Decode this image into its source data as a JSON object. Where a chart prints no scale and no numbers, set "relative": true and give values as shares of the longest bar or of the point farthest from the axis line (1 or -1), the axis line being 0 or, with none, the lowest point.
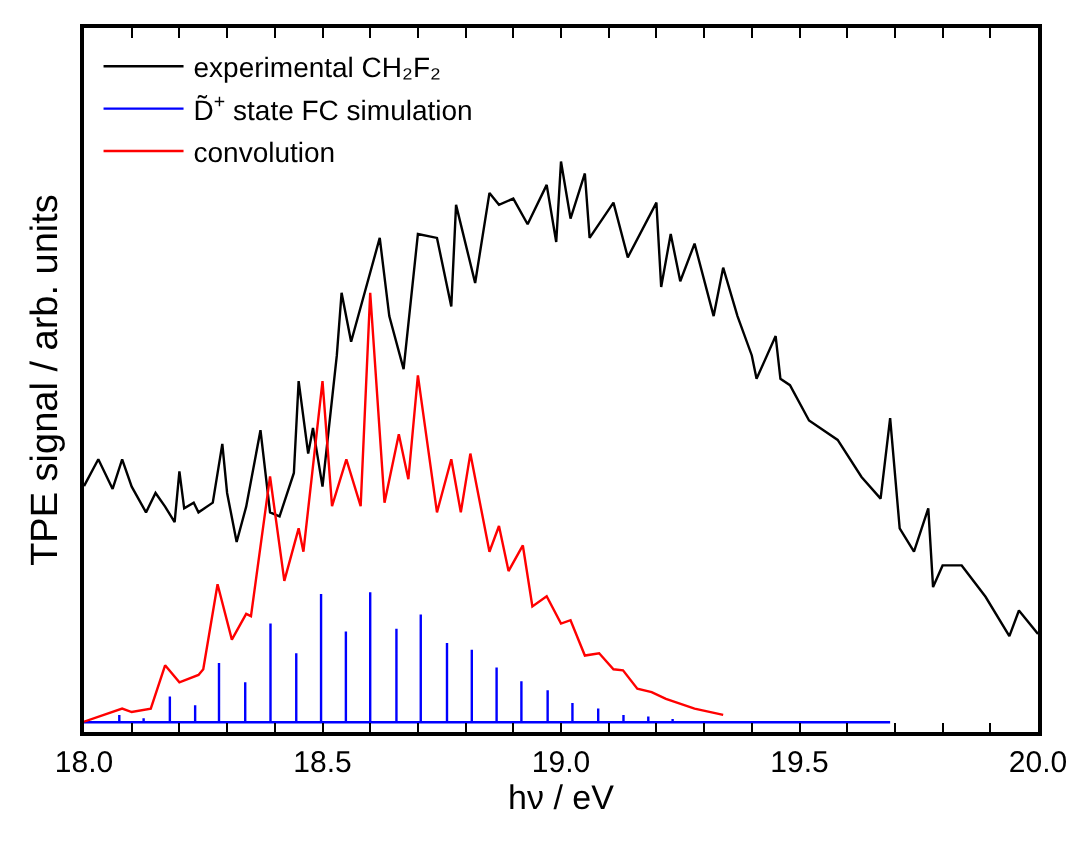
{
  "chart_data": {
    "type": "line",
    "relative": true,
    "xlabel": "hν / eV",
    "ylabel": "TPE signal / arb. units",
    "xlim": [
      18.0,
      20.0
    ],
    "xticks": [
      {
        "value": 18.0,
        "label": "18.0"
      },
      {
        "value": 18.1,
        "label": null
      },
      {
        "value": 18.2,
        "label": null
      },
      {
        "value": 18.3,
        "label": null
      },
      {
        "value": 18.4,
        "label": null
      },
      {
        "value": 18.5,
        "label": "18.5"
      },
      {
        "value": 18.6,
        "label": null
      },
      {
        "value": 18.7,
        "label": null
      },
      {
        "value": 18.8,
        "label": null
      },
      {
        "value": 18.9,
        "label": null
      },
      {
        "value": 19.0,
        "label": "19.0"
      },
      {
        "value": 19.1,
        "label": null
      },
      {
        "value": 19.2,
        "label": null
      },
      {
        "value": 19.3,
        "label": null
      },
      {
        "value": 19.4,
        "label": null
      },
      {
        "value": 19.5,
        "label": "19.5"
      },
      {
        "value": 19.6,
        "label": null
      },
      {
        "value": 19.7,
        "label": null
      },
      {
        "value": 19.8,
        "label": null
      },
      {
        "value": 19.9,
        "label": null
      },
      {
        "value": 20.0,
        "label": "20.0"
      }
    ],
    "tick_labels": "x",
    "legend": "top left",
    "marker": "none",
    "line_style": "solid",
    "series": [
      {
        "name": "experimental CH₂F₂",
        "color": "#000000",
        "x": [
          18.0,
          18.03,
          18.06,
          18.08,
          18.1,
          18.13,
          18.15,
          18.17,
          18.19,
          18.2,
          18.21,
          18.23,
          18.24,
          18.27,
          18.29,
          18.3,
          18.32,
          18.34,
          18.37,
          18.39,
          18.41,
          18.44,
          18.45,
          18.47,
          18.48,
          18.5,
          18.53,
          18.54,
          18.56,
          18.62,
          18.64,
          18.67,
          18.7,
          18.74,
          18.77,
          18.78,
          18.82,
          18.85,
          18.87,
          18.9,
          18.93,
          18.97,
          18.99,
          19.0,
          19.02,
          19.05,
          19.06,
          19.11,
          19.14,
          19.2,
          19.21,
          19.23,
          19.25,
          19.28,
          19.32,
          19.34,
          19.37,
          19.4,
          19.41,
          19.45,
          19.46,
          19.48,
          19.52,
          19.58,
          19.63,
          19.67,
          19.69,
          19.71,
          19.74,
          19.77,
          19.78,
          19.8,
          19.84,
          19.89,
          19.94,
          19.96,
          20.0
        ],
        "values": [
          0.431,
          0.478,
          0.426,
          0.478,
          0.43,
          0.385,
          0.419,
          0.395,
          0.368,
          0.457,
          0.392,
          0.402,
          0.385,
          0.402,
          0.505,
          0.419,
          0.333,
          0.395,
          0.529,
          0.385,
          0.378,
          0.454,
          0.615,
          0.488,
          0.533,
          0.43,
          0.66,
          0.77,
          0.684,
          0.866,
          0.729,
          0.636,
          0.873,
          0.866,
          0.746,
          0.924,
          0.787,
          0.945,
          0.924,
          0.935,
          0.89,
          0.959,
          0.859,
          1.0,
          0.9,
          0.979,
          0.866,
          0.928,
          0.832,
          0.928,
          0.78,
          0.873,
          0.79,
          0.856,
          0.729,
          0.814,
          0.729,
          0.66,
          0.619,
          0.694,
          0.619,
          0.608,
          0.546,
          0.512,
          0.447,
          0.409,
          0.55,
          0.357,
          0.316,
          0.392,
          0.254,
          0.292,
          0.292,
          0.237,
          0.168,
          0.213,
          0.172
        ]
      },
      {
        "name": "D̃$^{+}$ state FC simulation",
        "color": "#0000ff",
        "x": [
          18.0,
          18.074,
          18.074,
          18.074,
          18.125,
          18.125,
          18.125,
          18.18,
          18.18,
          18.18,
          18.233,
          18.233,
          18.233,
          18.283,
          18.283,
          18.283,
          18.338,
          18.338,
          18.338,
          18.391,
          18.391,
          18.391,
          18.445,
          18.445,
          18.445,
          18.497,
          18.497,
          18.497,
          18.549,
          18.549,
          18.549,
          18.6,
          18.6,
          18.6,
          18.655,
          18.655,
          18.655,
          18.706,
          18.706,
          18.706,
          18.761,
          18.761,
          18.761,
          18.813,
          18.813,
          18.813,
          18.865,
          18.865,
          18.865,
          18.917,
          18.917,
          18.917,
          18.972,
          18.972,
          18.972,
          19.024,
          19.024,
          19.024,
          19.078,
          19.078,
          19.078,
          19.131,
          19.131,
          19.131,
          19.183,
          19.183,
          19.183,
          19.234,
          19.234,
          19.234,
          19.69
        ],
        "values": [
          0.017,
          0.017,
          0.03,
          0.017,
          0.017,
          0.024,
          0.017,
          0.017,
          0.062,
          0.017,
          0.017,
          0.047,
          0.017,
          0.017,
          0.121,
          0.017,
          0.017,
          0.087,
          0.017,
          0.017,
          0.19,
          0.017,
          0.017,
          0.138,
          0.017,
          0.017,
          0.242,
          0.017,
          0.017,
          0.176,
          0.017,
          0.017,
          0.245,
          0.017,
          0.017,
          0.181,
          0.017,
          0.017,
          0.206,
          0.017,
          0.017,
          0.156,
          0.017,
          0.017,
          0.144,
          0.017,
          0.017,
          0.113,
          0.017,
          0.017,
          0.089,
          0.017,
          0.017,
          0.073,
          0.017,
          0.017,
          0.051,
          0.017,
          0.017,
          0.041,
          0.017,
          0.017,
          0.03,
          0.017,
          0.017,
          0.027,
          0.017,
          0.017,
          0.023,
          0.017,
          0.017
        ]
      },
      {
        "name": "convolution",
        "color": "#ff0000",
        "x": [
          18.0,
          18.08,
          18.1,
          18.14,
          18.17,
          18.2,
          18.24,
          18.25,
          18.28,
          18.31,
          18.34,
          18.35,
          18.39,
          18.42,
          18.45,
          18.46,
          18.5,
          18.52,
          18.55,
          18.58,
          18.6,
          18.63,
          18.66,
          18.68,
          18.7,
          18.74,
          18.77,
          18.79,
          18.81,
          18.85,
          18.87,
          18.89,
          18.92,
          18.94,
          18.97,
          19.0,
          19.02,
          19.05,
          19.08,
          19.11,
          19.13,
          19.16,
          19.19,
          19.22,
          19.28,
          19.34
        ],
        "values": [
          0.018,
          0.041,
          0.035,
          0.041,
          0.117,
          0.087,
          0.1,
          0.11,
          0.259,
          0.162,
          0.207,
          0.203,
          0.448,
          0.265,
          0.357,
          0.316,
          0.615,
          0.396,
          0.478,
          0.396,
          0.77,
          0.402,
          0.522,
          0.443,
          0.625,
          0.385,
          0.478,
          0.385,
          0.488,
          0.316,
          0.361,
          0.282,
          0.327,
          0.22,
          0.238,
          0.19,
          0.196,
          0.134,
          0.138,
          0.11,
          0.108,
          0.076,
          0.07,
          0.058,
          0.041,
          0.03
        ]
      }
    ]
  }
}
